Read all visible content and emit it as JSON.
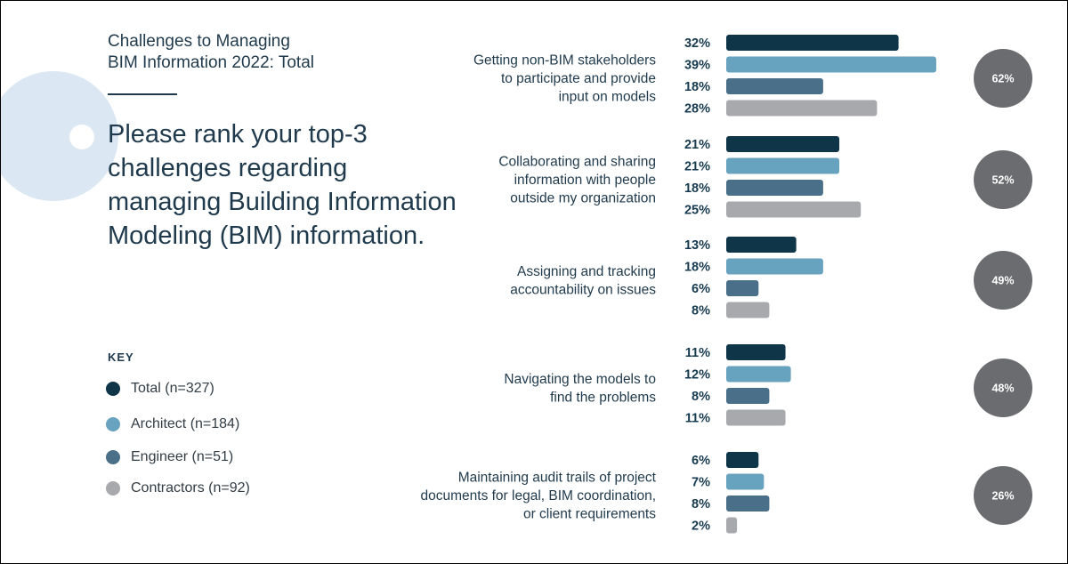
{
  "header": {
    "title_line1": "Challenges to Managing",
    "title_line2": "BIM Information 2022: Total",
    "question": "Please rank your top-3 challenges regarding managing Building Information Modeling (BIM) information."
  },
  "key": {
    "heading": "KEY",
    "items": [
      {
        "label": "Total (n=327)",
        "color": "#0f3548"
      },
      {
        "label": "Architect (n=184)",
        "color": "#67a2bf"
      },
      {
        "label": "Engineer (n=51)",
        "color": "#4a6f89"
      },
      {
        "label": "Contractors (n=92)",
        "color": "#a7a9ac"
      }
    ]
  },
  "chart_data": {
    "type": "bar",
    "orientation": "horizontal",
    "value_suffix": "%",
    "title": "Challenges to Managing BIM Information 2022: Total",
    "series": [
      {
        "name": "Total (n=327)",
        "color": "#0f3548"
      },
      {
        "name": "Architect (n=184)",
        "color": "#67a2bf"
      },
      {
        "name": "Engineer (n=51)",
        "color": "#4a6f89"
      },
      {
        "name": "Contractors (n=92)",
        "color": "#a7a9ac"
      }
    ],
    "categories": [
      {
        "label_lines": [
          "Getting non-BIM stakeholders",
          "to participate and provide",
          "input on models"
        ],
        "values": [
          32,
          39,
          18,
          28
        ],
        "total_circle": "62%"
      },
      {
        "label_lines": [
          "Collaborating and sharing",
          "information with people",
          "outside my organization"
        ],
        "values": [
          21,
          21,
          18,
          25
        ],
        "total_circle": "52%"
      },
      {
        "label_lines": [
          "Assigning and tracking",
          "accountability on issues"
        ],
        "values": [
          13,
          18,
          6,
          8
        ],
        "total_circle": "49%"
      },
      {
        "label_lines": [
          "Navigating the models to",
          "find the problems"
        ],
        "values": [
          11,
          12,
          8,
          11
        ],
        "total_circle": "48%"
      },
      {
        "label_lines": [
          "Maintaining audit trails of project",
          "documents for legal, BIM coordination,",
          "or client requirements"
        ],
        "values": [
          6,
          7,
          8,
          2
        ],
        "total_circle": "26%"
      }
    ],
    "circle_color": "#6b6c6f",
    "xlim": [
      0,
      40
    ],
    "grid": false,
    "legend_position": "bottom-left"
  }
}
